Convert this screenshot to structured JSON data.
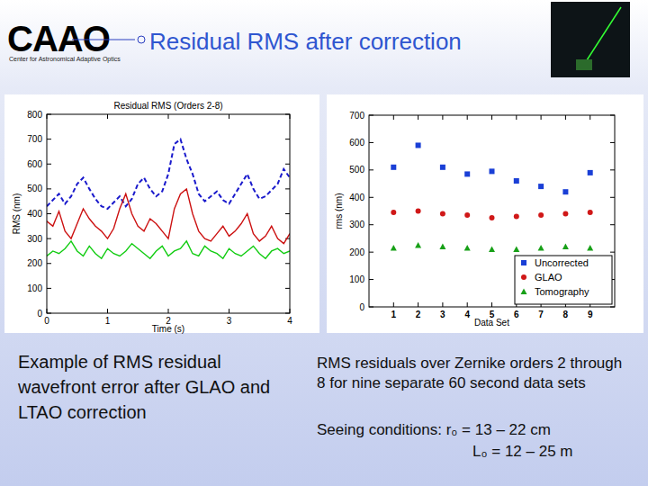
{
  "slide": {
    "logo": "CAAO",
    "logo_subtitle": "Center for Astronomical Adaptive Optics",
    "title": "Residual RMS after correction",
    "captions": [
      "Example of RMS residual wavefront error after GLAO and LTAO correction",
      "RMS residuals over Zernike orders 2 through 8 for nine separate 60 second data sets"
    ],
    "seeing": [
      "Seeing conditions: r₀ = 13 – 22 cm",
      "L₀ = 12 – 25 m"
    ]
  },
  "chart_data": [
    {
      "type": "line",
      "title": "Residual RMS (Orders 2-8)",
      "x_label": "Time (s)",
      "y_label": "RMS (nm)",
      "x": [
        0,
        0.1,
        0.2,
        0.3,
        0.4,
        0.5,
        0.6,
        0.7,
        0.8,
        0.9,
        1,
        1.1,
        1.2,
        1.3,
        1.4,
        1.5,
        1.6,
        1.7,
        1.8,
        1.9,
        2,
        2.1,
        2.2,
        2.3,
        2.4,
        2.5,
        2.6,
        2.7,
        2.8,
        2.9,
        3,
        3.1,
        3.2,
        3.3,
        3.4,
        3.5,
        3.6,
        3.7,
        3.8,
        3.9,
        4
      ],
      "series": [
        {
          "color": "#1a1acc",
          "line_style": "dashed",
          "values": [
            430,
            455,
            480,
            440,
            470,
            520,
            545,
            500,
            460,
            430,
            420,
            445,
            470,
            430,
            460,
            520,
            545,
            500,
            470,
            490,
            560,
            680,
            700,
            620,
            560,
            480,
            450,
            470,
            490,
            455,
            440,
            480,
            520,
            560,
            500,
            460,
            470,
            495,
            520,
            580,
            545
          ]
        },
        {
          "color": "#cc1111",
          "line_style": "solid",
          "values": [
            370,
            350,
            410,
            330,
            300,
            360,
            420,
            380,
            350,
            330,
            300,
            340,
            420,
            480,
            400,
            350,
            330,
            380,
            360,
            330,
            300,
            420,
            480,
            500,
            400,
            330,
            300,
            290,
            320,
            350,
            310,
            330,
            360,
            400,
            320,
            290,
            310,
            350,
            300,
            280,
            320
          ]
        },
        {
          "color": "#11cc11",
          "line_style": "solid",
          "values": [
            230,
            250,
            240,
            260,
            290,
            250,
            230,
            270,
            240,
            220,
            260,
            240,
            230,
            250,
            280,
            260,
            240,
            220,
            250,
            270,
            230,
            250,
            260,
            290,
            240,
            230,
            270,
            250,
            240,
            220,
            260,
            240,
            230,
            250,
            270,
            240,
            220,
            250,
            260,
            240,
            250
          ]
        }
      ],
      "xlim": [
        0,
        4
      ],
      "xticks": [
        0,
        1,
        2,
        3,
        4
      ],
      "ylim": [
        0,
        800
      ],
      "yticks": [
        0,
        100,
        200,
        300,
        400,
        500,
        600,
        700,
        800
      ]
    },
    {
      "type": "scatter",
      "x_label": "Data Set",
      "y_label": "rms (nm)",
      "x": [
        1,
        2,
        3,
        4,
        5,
        6,
        7,
        8,
        9
      ],
      "series": [
        {
          "name": "Uncorrected",
          "color": "#1a3fd6",
          "marker": "square",
          "values": [
            510,
            590,
            510,
            485,
            495,
            460,
            440,
            420,
            490
          ]
        },
        {
          "name": "GLAO",
          "color": "#d01818",
          "marker": "circle",
          "values": [
            345,
            350,
            340,
            335,
            325,
            330,
            335,
            340,
            345
          ]
        },
        {
          "name": "Tomography",
          "color": "#18a018",
          "marker": "triangle",
          "values": [
            215,
            225,
            220,
            215,
            210,
            210,
            215,
            220,
            215
          ]
        }
      ],
      "xlim": [
        0,
        10
      ],
      "xticks": [
        1,
        2,
        3,
        4,
        5,
        6,
        7,
        8,
        9
      ],
      "ylim": [
        0,
        700
      ],
      "yticks": [
        0,
        100,
        200,
        300,
        400,
        500,
        600,
        700
      ],
      "legend": "lower right"
    }
  ]
}
